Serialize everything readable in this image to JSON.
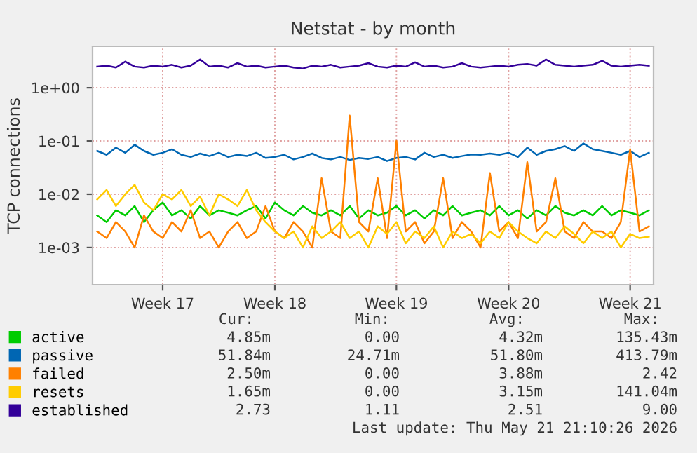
{
  "chart_data": {
    "type": "line",
    "title": "Netstat - by month",
    "ylabel": "TCP connections",
    "log": "y",
    "grid": true,
    "legend": "bottom left",
    "ylim": [
      0.0002,
      6
    ],
    "categories": [
      null,
      null,
      null,
      null,
      null,
      null,
      null,
      "Week 17",
      null,
      null,
      null,
      null,
      null,
      null,
      null,
      null,
      null,
      null,
      null,
      "Week 18",
      null,
      null,
      null,
      null,
      null,
      null,
      null,
      null,
      null,
      null,
      null,
      null,
      "Week 19",
      null,
      null,
      null,
      null,
      null,
      null,
      null,
      null,
      null,
      null,
      null,
      "Week 20",
      null,
      null,
      null,
      null,
      null,
      null,
      null,
      null,
      null,
      null,
      null,
      null,
      "Week 21",
      null,
      null
    ],
    "yticks": [
      {
        "value": 0.001,
        "label": "1e-03"
      },
      {
        "value": 0.01,
        "label": "1e-02"
      },
      {
        "value": 0.1,
        "label": "1e-01"
      },
      {
        "value": 1,
        "label": "1e+00"
      }
    ],
    "series": [
      {
        "name": "active",
        "color": "#00cc00",
        "values": [
          0.004,
          0.003,
          0.005,
          0.004,
          0.006,
          0.003,
          0.005,
          0.007,
          0.004,
          0.005,
          0.0035,
          0.006,
          0.004,
          0.005,
          0.0045,
          0.004,
          0.005,
          0.006,
          0.0035,
          0.007,
          0.005,
          0.004,
          0.006,
          0.0045,
          0.004,
          0.005,
          0.004,
          0.006,
          0.0035,
          0.005,
          0.004,
          0.0045,
          0.006,
          0.004,
          0.005,
          0.0035,
          0.005,
          0.004,
          0.006,
          0.004,
          0.0045,
          0.005,
          0.004,
          0.006,
          0.004,
          0.005,
          0.0035,
          0.005,
          0.004,
          0.006,
          0.0045,
          0.004,
          0.005,
          0.004,
          0.006,
          0.004,
          0.005,
          0.0045,
          0.004,
          0.005
        ]
      },
      {
        "name": "passive",
        "color": "#0066b3",
        "values": [
          0.065,
          0.055,
          0.075,
          0.06,
          0.085,
          0.065,
          0.055,
          0.06,
          0.07,
          0.055,
          0.05,
          0.058,
          0.052,
          0.06,
          0.05,
          0.055,
          0.052,
          0.06,
          0.048,
          0.05,
          0.055,
          0.045,
          0.05,
          0.058,
          0.048,
          0.045,
          0.05,
          0.044,
          0.048,
          0.046,
          0.05,
          0.042,
          0.048,
          0.05,
          0.045,
          0.06,
          0.05,
          0.055,
          0.048,
          0.052,
          0.056,
          0.055,
          0.058,
          0.055,
          0.06,
          0.05,
          0.075,
          0.055,
          0.065,
          0.07,
          0.08,
          0.065,
          0.09,
          0.07,
          0.065,
          0.06,
          0.055,
          0.065,
          0.05,
          0.06
        ]
      },
      {
        "name": "failed",
        "color": "#ff8000",
        "values": [
          0.002,
          0.0015,
          0.003,
          0.002,
          0.001,
          0.004,
          0.002,
          0.0015,
          0.003,
          0.002,
          0.005,
          0.0015,
          0.002,
          0.001,
          0.002,
          0.003,
          0.0015,
          0.002,
          0.006,
          0.002,
          0.0015,
          0.003,
          0.002,
          0.001,
          0.02,
          0.002,
          0.0015,
          0.3,
          0.003,
          0.002,
          0.02,
          0.0015,
          0.1,
          0.002,
          0.003,
          0.0012,
          0.002,
          0.02,
          0.0015,
          0.003,
          0.002,
          0.001,
          0.025,
          0.002,
          0.003,
          0.0015,
          0.04,
          0.002,
          0.003,
          0.02,
          0.002,
          0.0015,
          0.003,
          0.002,
          0.002,
          0.0015,
          0.003,
          0.07,
          0.002,
          0.0025
        ]
      },
      {
        "name": "resets",
        "color": "#ffcc00",
        "values": [
          0.008,
          0.012,
          0.006,
          0.01,
          0.015,
          0.007,
          0.005,
          0.01,
          0.008,
          0.012,
          0.006,
          0.009,
          0.004,
          0.01,
          0.008,
          0.006,
          0.012,
          0.005,
          0.003,
          0.002,
          0.0015,
          0.002,
          0.001,
          0.0025,
          0.0015,
          0.002,
          0.003,
          0.0015,
          0.002,
          0.001,
          0.0025,
          0.0018,
          0.003,
          0.0012,
          0.002,
          0.0015,
          0.0025,
          0.001,
          0.002,
          0.0015,
          0.0018,
          0.0012,
          0.002,
          0.0015,
          0.003,
          0.002,
          0.0015,
          0.0012,
          0.002,
          0.0015,
          0.0025,
          0.0018,
          0.0012,
          0.002,
          0.0015,
          0.002,
          0.001,
          0.0018,
          0.0015,
          0.0016
        ]
      },
      {
        "name": "established",
        "color": "#330099",
        "values": [
          2.5,
          2.6,
          2.4,
          3.1,
          2.5,
          2.4,
          2.6,
          2.5,
          2.7,
          2.4,
          2.6,
          3.4,
          2.5,
          2.6,
          2.4,
          2.9,
          2.5,
          2.6,
          2.4,
          2.5,
          2.6,
          2.4,
          2.3,
          2.6,
          2.5,
          2.7,
          2.4,
          2.5,
          2.6,
          2.9,
          2.5,
          2.4,
          2.6,
          2.5,
          3.0,
          2.5,
          2.6,
          2.4,
          2.5,
          2.9,
          2.5,
          2.4,
          2.5,
          2.6,
          2.5,
          2.7,
          2.8,
          2.6,
          3.4,
          2.7,
          2.6,
          2.5,
          2.6,
          2.7,
          3.2,
          2.6,
          2.5,
          2.6,
          2.7,
          2.6
        ]
      }
    ],
    "annotations": [
      "Cur:",
      "Min:",
      "Avg:",
      "Max:",
      "4.85m",
      "0.00",
      "4.32m",
      "135.43m",
      "51.84m",
      "24.71m",
      "51.80m",
      "413.79m",
      "2.50m",
      "0.00",
      "3.88m",
      "2.42",
      "1.65m",
      "0.00",
      "3.15m",
      "141.04m",
      "2.73",
      "1.11",
      "2.51",
      "9.00",
      "Last update: Thu May 21 21:10:26 2026"
    ]
  }
}
